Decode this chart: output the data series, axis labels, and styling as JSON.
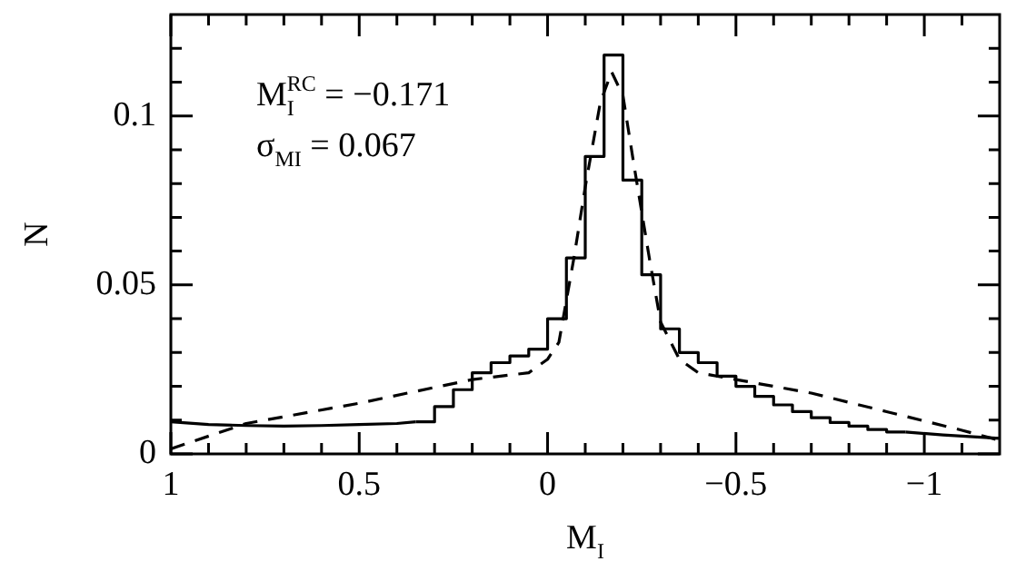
{
  "chart_data": {
    "type": "histogram",
    "xlabel": "M$_{I}$",
    "ylabel": "N",
    "annotations": [
      "M$_{I}$$^{RC}$ = −0.171",
      "σ$_{MI}$ = 0.067"
    ],
    "xlim": [
      1,
      -1.2
    ],
    "xticks": [
      1,
      {
        "value": 0.9,
        "label": null
      },
      {
        "value": 0.8,
        "label": null
      },
      {
        "value": 0.7,
        "label": null
      },
      {
        "value": 0.6,
        "label": null
      },
      0.5,
      {
        "value": 0.4,
        "label": null
      },
      {
        "value": 0.3,
        "label": null
      },
      {
        "value": 0.2,
        "label": null
      },
      {
        "value": 0.1,
        "label": null
      },
      0,
      {
        "value": -0.1,
        "label": null
      },
      {
        "value": -0.2,
        "label": null
      },
      {
        "value": -0.3,
        "label": null
      },
      {
        "value": -0.4,
        "label": null
      },
      {
        "value": -0.5,
        "label": "−0.5"
      },
      {
        "value": -0.6,
        "label": null
      },
      {
        "value": -0.7,
        "label": null
      },
      {
        "value": -0.8,
        "label": null
      },
      {
        "value": -0.9,
        "label": null
      },
      {
        "value": -1,
        "label": "−1"
      },
      {
        "value": -1.1,
        "label": null
      }
    ],
    "ylim": [
      0,
      0.13
    ],
    "yticks": [
      0,
      {
        "value": 0.01,
        "label": null
      },
      {
        "value": 0.02,
        "label": null
      },
      {
        "value": 0.03,
        "label": null
      },
      {
        "value": 0.04,
        "label": null
      },
      0.05,
      {
        "value": 0.06,
        "label": null
      },
      {
        "value": 0.07,
        "label": null
      },
      {
        "value": 0.08,
        "label": null
      },
      {
        "value": 0.09,
        "label": null
      },
      0.1,
      {
        "value": 0.11,
        "label": null
      },
      {
        "value": 0.12,
        "label": null
      }
    ],
    "grid": false,
    "legend": false,
    "series": [
      {
        "color": "#000000",
        "bins": [
          -0.95,
          -0.9,
          -0.85,
          -0.8,
          -0.75,
          -0.7,
          -0.65,
          -0.6,
          -0.55,
          -0.5,
          -0.45,
          -0.4,
          -0.35,
          -0.3,
          -0.25,
          -0.2,
          -0.15,
          -0.1,
          -0.05,
          0,
          0.05,
          0.1,
          0.15,
          0.2,
          0.25,
          0.3,
          0.35
        ],
        "values": [
          0.0065,
          0.0072,
          0.0082,
          0.0093,
          0.0107,
          0.0125,
          0.0145,
          0.017,
          0.02,
          0.023,
          0.027,
          0.03,
          0.037,
          0.053,
          0.081,
          0.118,
          0.088,
          0.058,
          0.04,
          0.031,
          0.029,
          0.027,
          0.024,
          0.019,
          0.014,
          0.0095
        ]
      },
      {
        "type": "line",
        "color": "#000000",
        "line_style": "solid",
        "x": [
          1,
          0.9,
          0.8,
          0.7,
          0.6,
          0.5,
          0.4,
          0.35
        ],
        "values": [
          0.0095,
          0.0087,
          0.0084,
          0.0082,
          0.0084,
          0.0087,
          0.009,
          0.0095
        ]
      },
      {
        "type": "line",
        "color": "#000000",
        "line_style": "solid",
        "x": [
          -0.95,
          -1.05,
          -1.2
        ],
        "values": [
          0.0065,
          0.0056,
          0.0046
        ]
      },
      {
        "type": "line",
        "color": "#000000",
        "line_style": "dashed",
        "x": [
          1,
          0.8,
          0.5,
          0.2,
          0.05,
          0,
          -0.03,
          -0.07,
          -0.1,
          -0.14,
          -0.17,
          -0.2,
          -0.23,
          -0.27,
          -0.3,
          -0.35,
          -0.4,
          -0.5,
          -0.7,
          -0.9,
          -1.1,
          -1.2
        ],
        "values": [
          0.0015,
          0.009,
          0.015,
          0.022,
          0.024,
          0.028,
          0.033,
          0.058,
          0.079,
          0.104,
          0.113,
          0.106,
          0.085,
          0.058,
          0.039,
          0.028,
          0.024,
          0.022,
          0.018,
          0.0125,
          0.007,
          0.004
        ]
      }
    ]
  }
}
